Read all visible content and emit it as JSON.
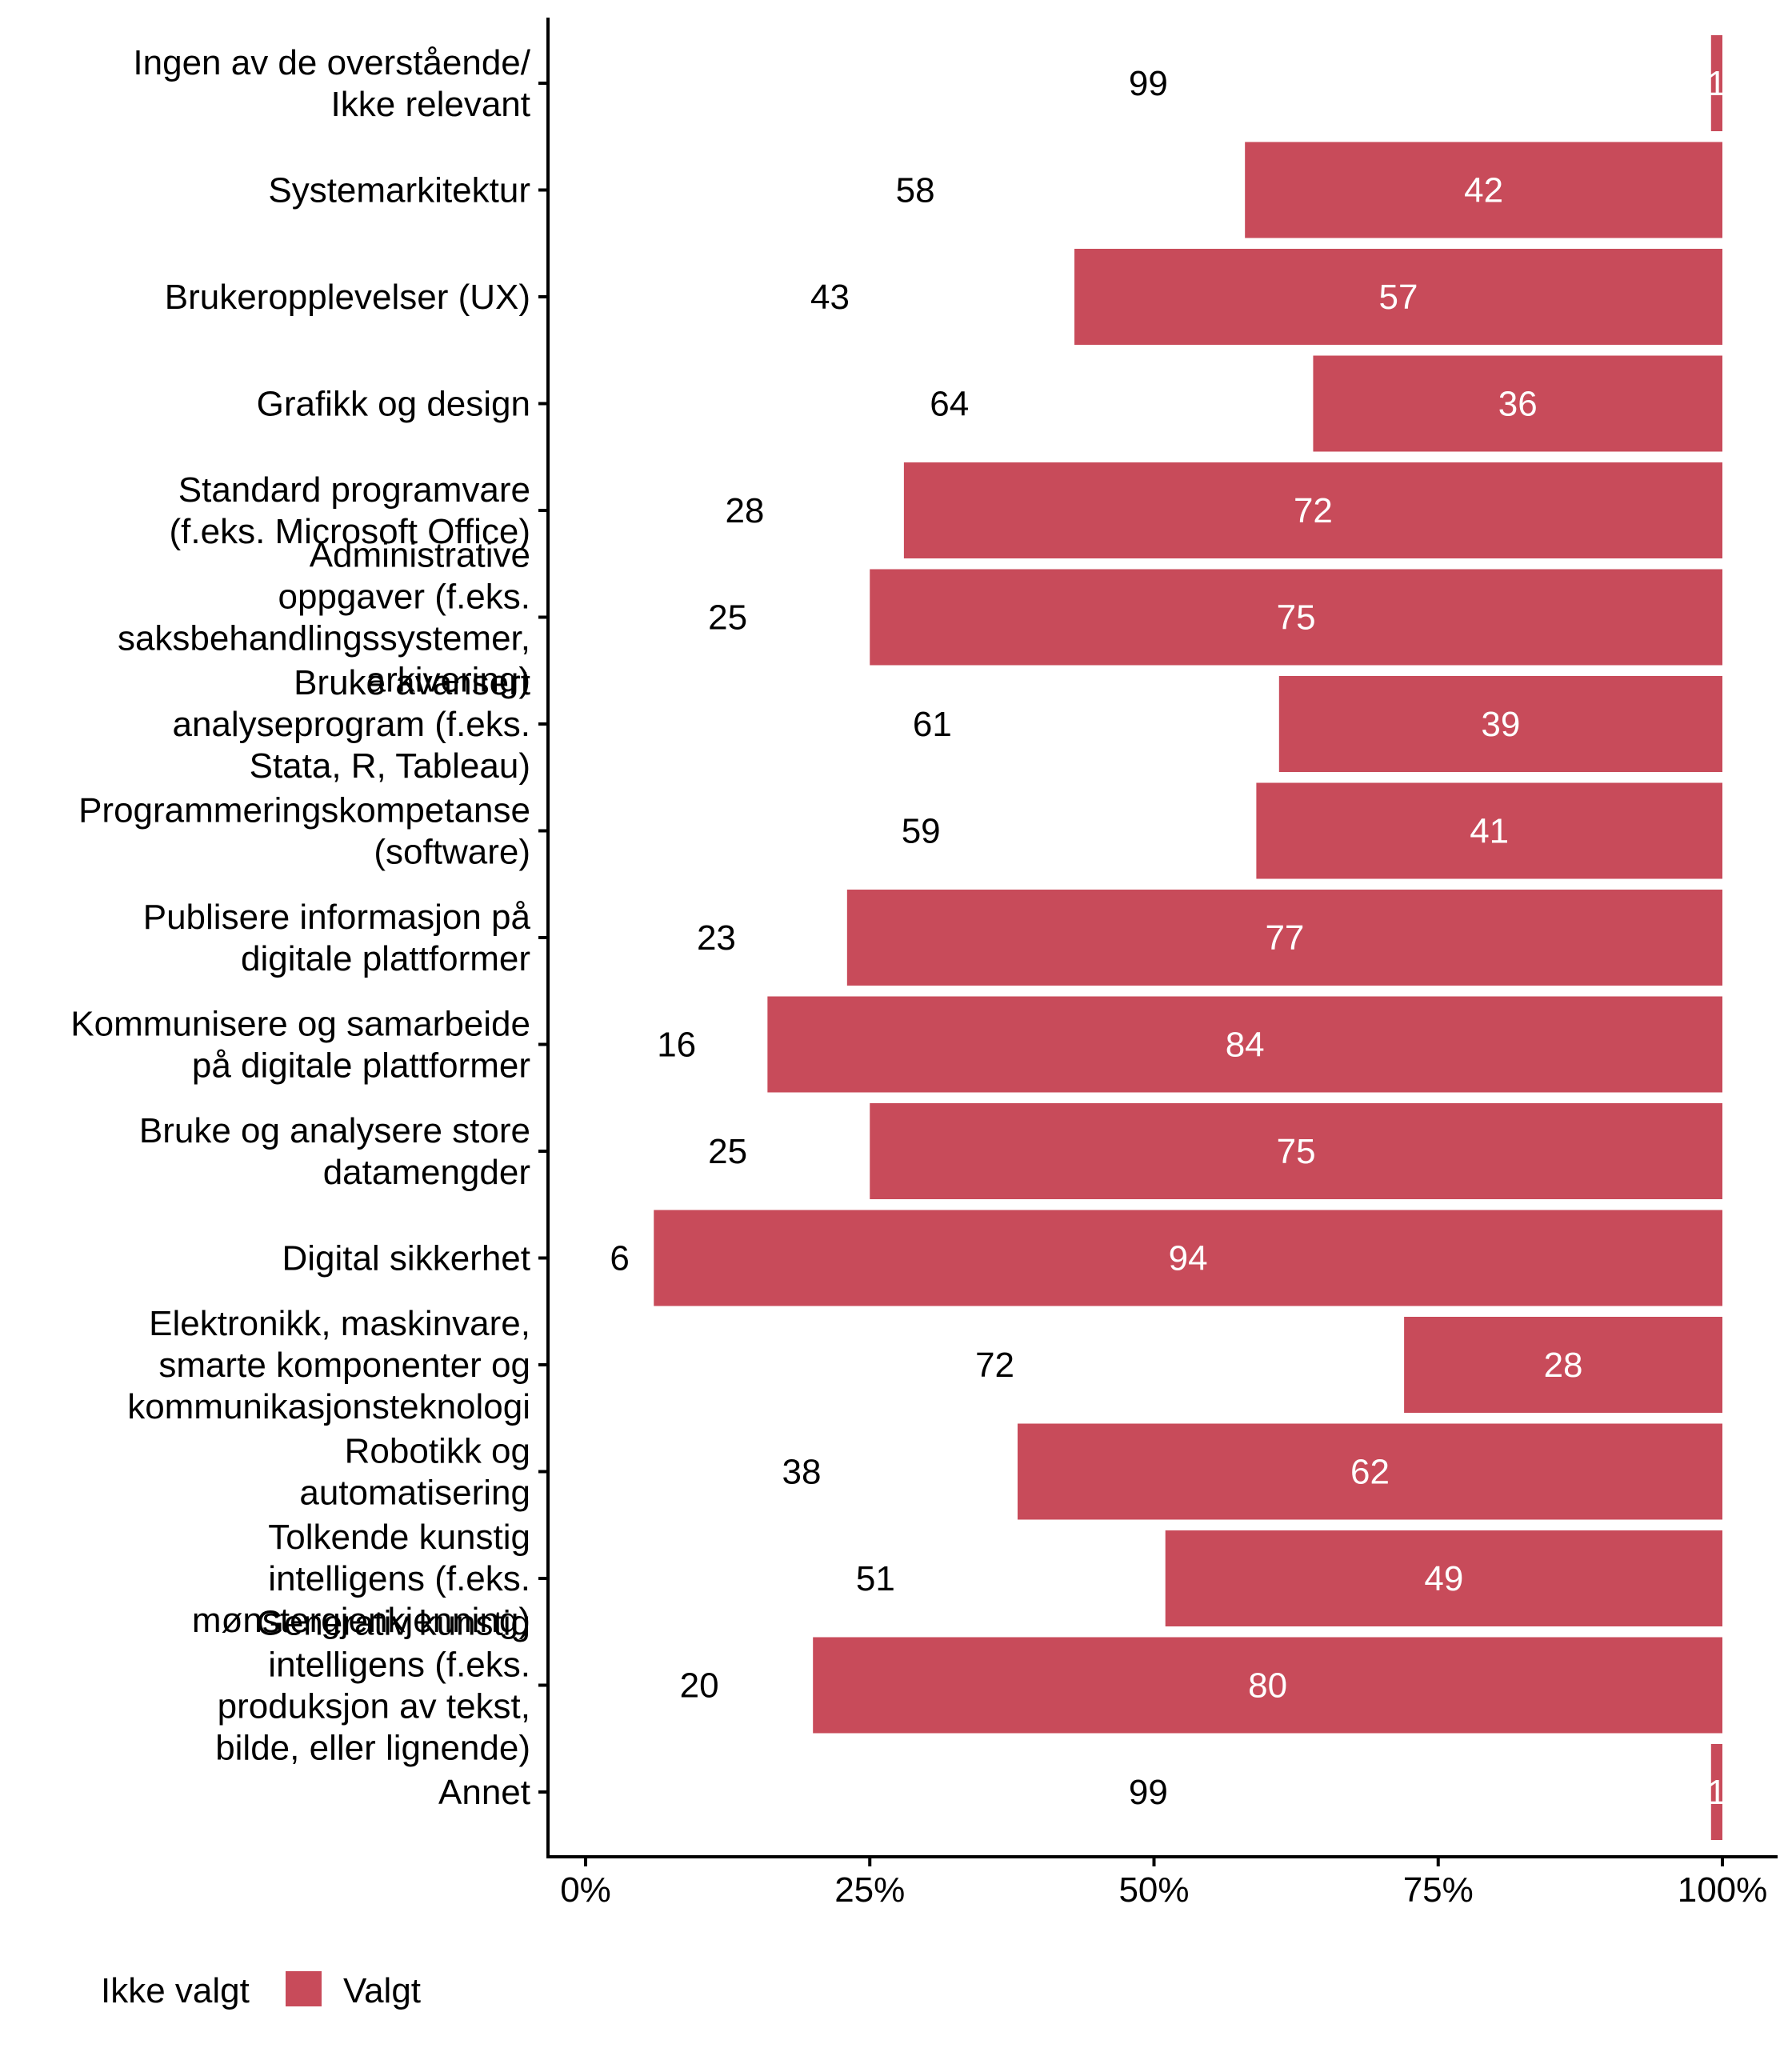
{
  "chart_data": {
    "type": "bar",
    "orientation": "horizontal",
    "stacked": "percent",
    "title": "",
    "xlabel": "",
    "ylabel": "",
    "xlim": [
      0,
      100
    ],
    "x_ticks": [
      "0%",
      "25%",
      "50%",
      "75%",
      "100%"
    ],
    "x_tick_values": [
      0,
      25,
      50,
      75,
      100
    ],
    "grid": false,
    "legend_position": "bottom-left",
    "categories": [
      "Ingen av de overstående/\nIkke relevant",
      "Systemarkitektur",
      "Brukeropplevelser (UX)",
      "Grafikk og design",
      "Standard programvare\n(f.eks. Microsoft Office)",
      "Administrative\noppgaver (f.eks.\nsaksbehandlingssystemer,\narkivering)",
      "Bruke avansert\nanalyseprogram (f.eks.\nStata, R, Tableau)",
      "Programmeringskompetanse\n(software)",
      "Publisere informasjon på\ndigitale plattformer",
      "Kommunisere og samarbeide\npå digitale plattformer",
      "Bruke og analysere store\ndatamengder",
      "Digital sikkerhet",
      "Elektronikk, maskinvare,\nsmarte komponenter og\nkommunikasjonsteknologi",
      "Robotikk og\nautomatisering",
      "Tolkende kunstig\nintelligens (f.eks.\nmønstergjenkjenning)",
      "Generativ kunstig\nintelligens (f.eks.\nproduksjon av tekst,\nbilde, eller lignende)",
      "Annet"
    ],
    "series": [
      {
        "name": "Ikke valgt",
        "color": "#ffffff",
        "label_color": "#000000",
        "values": [
          99,
          58,
          43,
          64,
          28,
          25,
          61,
          59,
          23,
          16,
          25,
          6,
          72,
          38,
          51,
          20,
          99
        ]
      },
      {
        "name": "Valgt",
        "color": "#c84b5a",
        "label_color": "#ffffff",
        "values": [
          1,
          42,
          57,
          36,
          72,
          75,
          39,
          41,
          77,
          84,
          75,
          94,
          28,
          62,
          49,
          80,
          1
        ]
      }
    ]
  },
  "legend": {
    "items": [
      {
        "label": "Ikke valgt",
        "color": "#ffffff"
      },
      {
        "label": "Valgt",
        "color": "#c84b5a"
      }
    ]
  }
}
